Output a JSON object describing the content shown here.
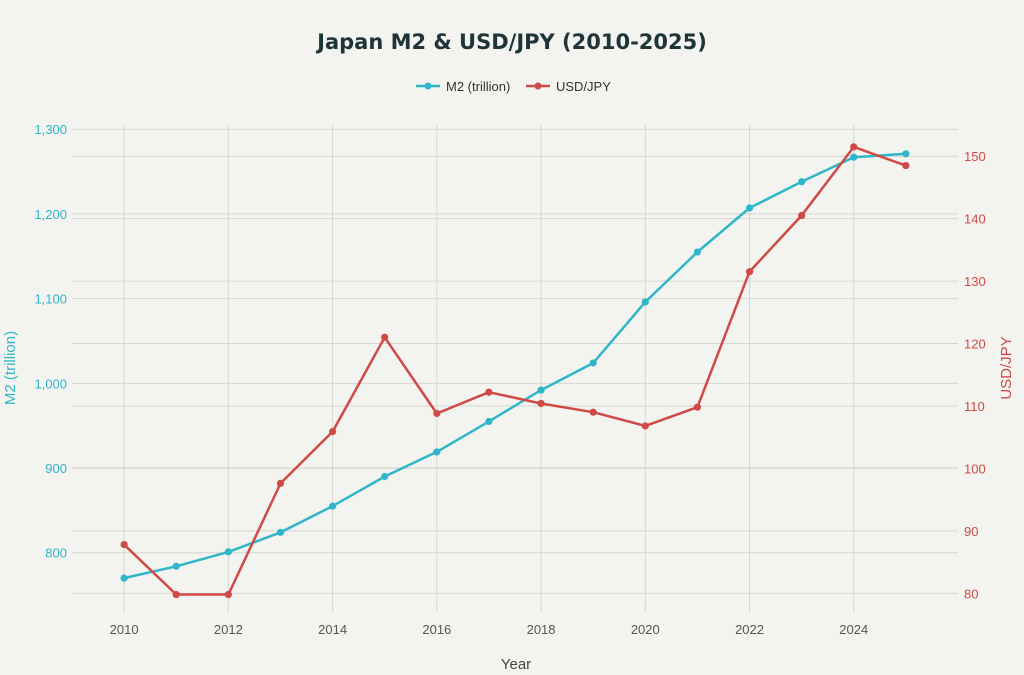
{
  "chart_data": {
    "type": "line",
    "title": "Japan M2 & USD/JPY (2010-2025)",
    "xlabel": "Year",
    "ylabel": "M2 (trillion)",
    "y2label": "USD/JPY",
    "x": [
      2010,
      2011,
      2012,
      2013,
      2014,
      2015,
      2016,
      2017,
      2018,
      2019,
      2020,
      2021,
      2022,
      2023,
      2024,
      2025
    ],
    "xticks": [
      2010,
      2012,
      2014,
      2016,
      2018,
      2020,
      2022,
      2024
    ],
    "xlim": [
      2009,
      2026
    ],
    "ylim": [
      730,
      1305
    ],
    "y2lim": [
      77,
      155
    ],
    "yticks": [
      800,
      900,
      1000,
      1100,
      1200,
      1300
    ],
    "ytick_labels": [
      "800",
      "900",
      "1,000",
      "1,100",
      "1,200",
      "1,300"
    ],
    "y2ticks": [
      80,
      90,
      100,
      110,
      120,
      130,
      140,
      150
    ],
    "y2tick_labels": [
      "80",
      "90",
      "100",
      "110",
      "120",
      "130",
      "140",
      "150"
    ],
    "grid": true,
    "legend_position": "top-center",
    "series": [
      {
        "name": "M2 (trillion)",
        "axis": "left",
        "color": "#2fb6c9",
        "values": [
          770,
          784,
          801,
          824,
          855,
          890,
          919,
          955,
          992,
          1024,
          1096,
          1155,
          1207,
          1238,
          1267,
          1271
        ]
      },
      {
        "name": "USD/JPY",
        "axis": "right",
        "color": "#cf4a47",
        "values": [
          87.8,
          79.8,
          79.8,
          97.6,
          105.9,
          121.0,
          108.8,
          112.2,
          110.4,
          109.0,
          106.8,
          109.8,
          131.5,
          140.5,
          151.5,
          148.5
        ]
      }
    ]
  }
}
